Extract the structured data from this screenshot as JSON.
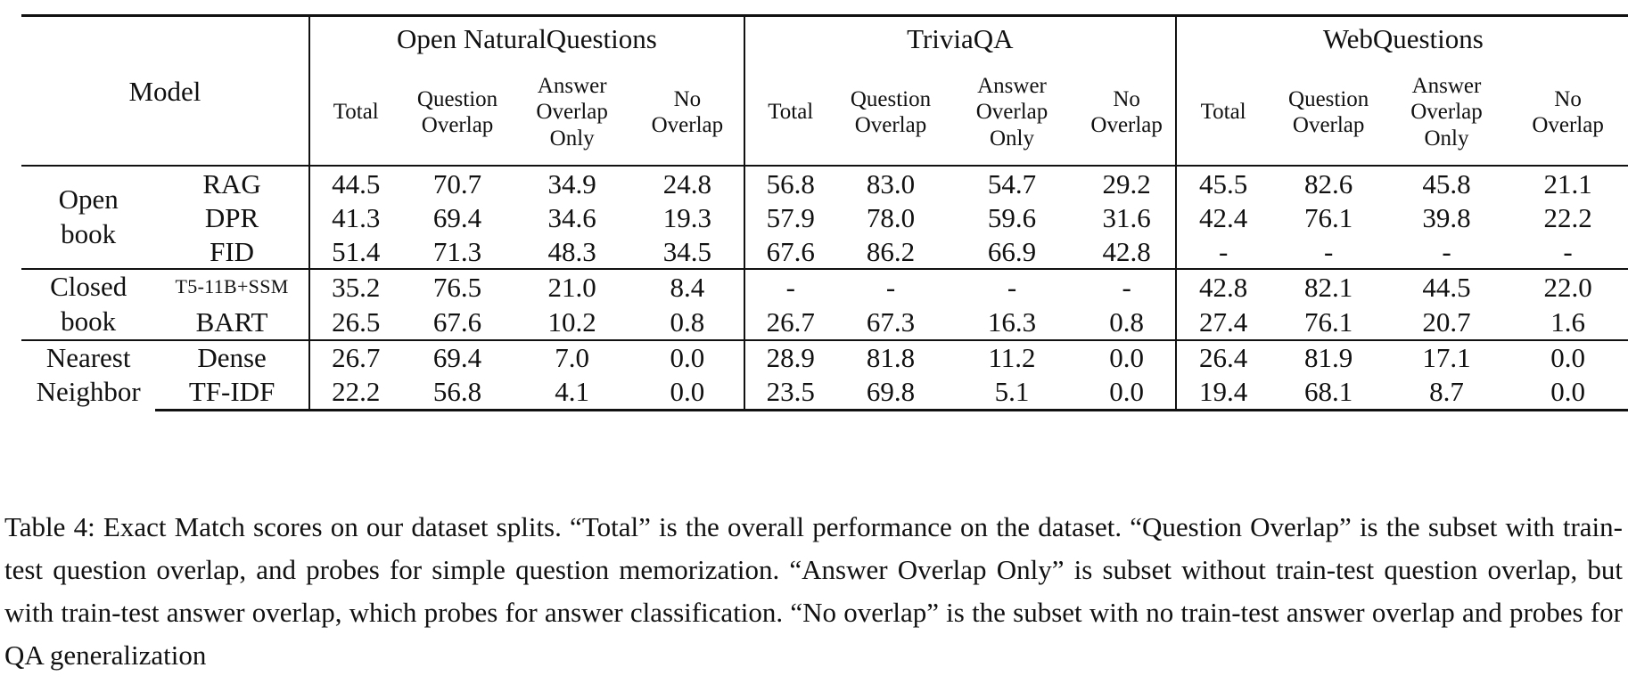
{
  "table": {
    "model_header": "Model",
    "datasets": [
      "Open NaturalQuestions",
      "TriviaQA",
      "WebQuestions"
    ],
    "subheaders": [
      [
        "Total"
      ],
      [
        "Question",
        "Overlap"
      ],
      [
        "Answer",
        "Overlap",
        "Only"
      ],
      [
        "No",
        "Overlap"
      ]
    ],
    "groups": [
      {
        "category": [
          "Open",
          "book"
        ],
        "rows": [
          {
            "model": "RAG",
            "values": [
              "44.5",
              "70.7",
              "34.9",
              "24.8",
              "56.8",
              "83.0",
              "54.7",
              "29.2",
              "45.5",
              "82.6",
              "45.8",
              "21.1"
            ]
          },
          {
            "model": "DPR",
            "values": [
              "41.3",
              "69.4",
              "34.6",
              "19.3",
              "57.9",
              "78.0",
              "59.6",
              "31.6",
              "42.4",
              "76.1",
              "39.8",
              "22.2"
            ]
          },
          {
            "model": "FID",
            "values": [
              "51.4",
              "71.3",
              "48.3",
              "34.5",
              "67.6",
              "86.2",
              "66.9",
              "42.8",
              "-",
              "-",
              "-",
              "-"
            ]
          }
        ]
      },
      {
        "category": [
          "Closed",
          "book"
        ],
        "rows": [
          {
            "model": "T5-11B+SSM",
            "values": [
              "35.2",
              "76.5",
              "21.0",
              "8.4",
              "-",
              "-",
              "-",
              "-",
              "42.8",
              "82.1",
              "44.5",
              "22.0"
            ]
          },
          {
            "model": "BART",
            "values": [
              "26.5",
              "67.6",
              "10.2",
              "0.8",
              "26.7",
              "67.3",
              "16.3",
              "0.8",
              "27.4",
              "76.1",
              "20.7",
              "1.6"
            ]
          }
        ]
      },
      {
        "category": [
          "Nearest",
          "Neighbor"
        ],
        "rows": [
          {
            "model": "Dense",
            "values": [
              "26.7",
              "69.4",
              "7.0",
              "0.0",
              "28.9",
              "81.8",
              "11.2",
              "0.0",
              "26.4",
              "81.9",
              "17.1",
              "0.0"
            ]
          },
          {
            "model": "TF-IDF",
            "values": [
              "22.2",
              "56.8",
              "4.1",
              "0.0",
              "23.5",
              "69.8",
              "5.1",
              "0.0",
              "19.4",
              "68.1",
              "8.7",
              "0.0"
            ]
          }
        ]
      }
    ]
  },
  "caption": "Table 4: Exact Match scores on our dataset splits. “Total” is the overall performance on the dataset. “Question Overlap” is the subset with train-test question overlap, and probes for simple question memorization. “Answer Overlap Only” is subset without train-test question overlap, but with train-test answer overlap, which probes for answer classification. “No overlap” is the subset with no train-test answer overlap and probes for QA generalization"
}
